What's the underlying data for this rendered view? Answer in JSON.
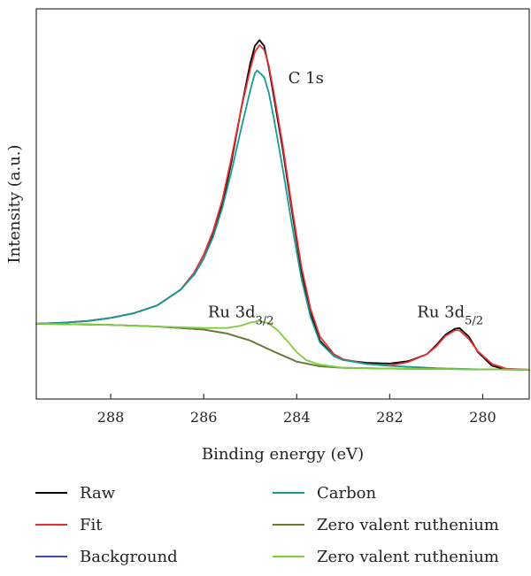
{
  "chart_data": {
    "type": "line",
    "xlabel": "Binding energy (eV)",
    "ylabel": "Intensity (a.u.)",
    "xlim": [
      289.6,
      279.0
    ],
    "ylim": [
      0,
      100
    ],
    "x_reversed": true,
    "x_ticks": [
      288,
      286,
      284,
      282,
      280
    ],
    "grid": false,
    "legend_position": "bottom",
    "annotations": [
      {
        "text": "C 1s",
        "x": 283.8,
        "y": 81
      },
      {
        "base": "Ru 3d",
        "sub": "3/2",
        "x": 285.2,
        "y": 21
      },
      {
        "base": "Ru 3d",
        "sub": "5/2",
        "x": 280.7,
        "y": 21
      }
    ],
    "series": [
      {
        "name": "Raw",
        "color": "#000000",
        "width": 1.8,
        "points": [
          [
            289.6,
            19.3
          ],
          [
            289.0,
            19.6
          ],
          [
            288.5,
            20.0
          ],
          [
            288.0,
            20.8
          ],
          [
            287.5,
            22.0
          ],
          [
            287.0,
            24.0
          ],
          [
            286.5,
            28.0
          ],
          [
            286.2,
            32.0
          ],
          [
            286.0,
            36.0
          ],
          [
            285.8,
            42.0
          ],
          [
            285.6,
            50.0
          ],
          [
            285.4,
            61.0
          ],
          [
            285.2,
            74.0
          ],
          [
            285.0,
            86.0
          ],
          [
            284.9,
            90.5
          ],
          [
            284.8,
            92.0
          ],
          [
            284.7,
            90.5
          ],
          [
            284.6,
            85.0
          ],
          [
            284.5,
            78.0
          ],
          [
            284.3,
            64.0
          ],
          [
            284.1,
            48.0
          ],
          [
            283.9,
            33.0
          ],
          [
            283.7,
            22.0
          ],
          [
            283.5,
            15.0
          ],
          [
            283.2,
            11.0
          ],
          [
            283.0,
            10.0
          ],
          [
            282.5,
            9.3
          ],
          [
            282.0,
            9.1
          ],
          [
            281.6,
            9.7
          ],
          [
            281.2,
            11.5
          ],
          [
            281.0,
            13.8
          ],
          [
            280.8,
            16.5
          ],
          [
            280.6,
            18.0
          ],
          [
            280.5,
            18.2
          ],
          [
            280.3,
            16.0
          ],
          [
            280.1,
            12.0
          ],
          [
            279.8,
            8.5
          ],
          [
            279.5,
            7.6
          ],
          [
            279.0,
            7.5
          ]
        ]
      },
      {
        "name": "Fit",
        "color": "#e8302e",
        "width": 1.8,
        "points": [
          [
            289.6,
            19.3
          ],
          [
            289.0,
            19.6
          ],
          [
            288.5,
            20.0
          ],
          [
            288.0,
            20.8
          ],
          [
            287.5,
            22.0
          ],
          [
            287.0,
            24.0
          ],
          [
            286.5,
            28.0
          ],
          [
            286.2,
            32.5
          ],
          [
            286.0,
            37.0
          ],
          [
            285.8,
            43.0
          ],
          [
            285.6,
            51.0
          ],
          [
            285.4,
            62.0
          ],
          [
            285.2,
            74.0
          ],
          [
            285.0,
            84.5
          ],
          [
            284.9,
            89.0
          ],
          [
            284.8,
            90.7
          ],
          [
            284.7,
            89.5
          ],
          [
            284.6,
            85.5
          ],
          [
            284.5,
            79.0
          ],
          [
            284.3,
            65.0
          ],
          [
            284.1,
            49.0
          ],
          [
            283.9,
            34.0
          ],
          [
            283.7,
            23.0
          ],
          [
            283.5,
            16.0
          ],
          [
            283.2,
            11.5
          ],
          [
            283.0,
            10.2
          ],
          [
            282.5,
            9.0
          ],
          [
            282.0,
            8.6
          ],
          [
            281.6,
            9.5
          ],
          [
            281.2,
            11.5
          ],
          [
            281.0,
            13.5
          ],
          [
            280.8,
            16.2
          ],
          [
            280.6,
            17.6
          ],
          [
            280.5,
            17.6
          ],
          [
            280.3,
            15.4
          ],
          [
            280.1,
            12.2
          ],
          [
            279.8,
            9.0
          ],
          [
            279.5,
            7.8
          ],
          [
            279.0,
            7.5
          ]
        ]
      },
      {
        "name": "Background",
        "color": "#3c4fa8",
        "width": 1.8,
        "points": [
          [
            289.6,
            19.3
          ],
          [
            289.0,
            19.2
          ],
          [
            288.0,
            19.0
          ],
          [
            287.0,
            18.6
          ],
          [
            286.0,
            17.8
          ],
          [
            285.5,
            16.8
          ],
          [
            285.0,
            15.0
          ],
          [
            284.5,
            12.2
          ],
          [
            284.0,
            9.6
          ],
          [
            283.5,
            8.4
          ],
          [
            283.0,
            8.0
          ],
          [
            282.0,
            7.8
          ],
          [
            281.0,
            7.7
          ],
          [
            280.0,
            7.6
          ],
          [
            279.0,
            7.5
          ]
        ]
      },
      {
        "name": "Carbon",
        "color": "#179a93",
        "width": 1.8,
        "points": [
          [
            289.6,
            19.3
          ],
          [
            289.0,
            19.6
          ],
          [
            288.5,
            20.0
          ],
          [
            288.0,
            20.8
          ],
          [
            287.5,
            22.0
          ],
          [
            287.0,
            24.0
          ],
          [
            286.5,
            28.0
          ],
          [
            286.2,
            32.0
          ],
          [
            286.0,
            36.0
          ],
          [
            285.8,
            41.5
          ],
          [
            285.6,
            49.0
          ],
          [
            285.4,
            58.5
          ],
          [
            285.2,
            69.0
          ],
          [
            285.0,
            79.0
          ],
          [
            284.9,
            83.5
          ],
          [
            284.85,
            84.2
          ],
          [
            284.7,
            82.5
          ],
          [
            284.6,
            78.5
          ],
          [
            284.5,
            72.5
          ],
          [
            284.3,
            59.0
          ],
          [
            284.1,
            44.5
          ],
          [
            283.9,
            31.0
          ],
          [
            283.7,
            21.0
          ],
          [
            283.5,
            14.5
          ],
          [
            283.2,
            11.0
          ],
          [
            283.0,
            10.0
          ],
          [
            282.5,
            9.0
          ],
          [
            282.0,
            8.5
          ],
          [
            281.5,
            8.2
          ],
          [
            281.0,
            7.9
          ],
          [
            280.0,
            7.6
          ],
          [
            279.0,
            7.5
          ]
        ]
      },
      {
        "name": "Zero valent ruthenium",
        "color": "#6b7a2e",
        "width": 1.8,
        "points": [
          [
            289.6,
            19.3
          ],
          [
            289.0,
            19.2
          ],
          [
            288.0,
            19.0
          ],
          [
            287.0,
            18.6
          ],
          [
            286.0,
            17.8
          ],
          [
            285.5,
            16.8
          ],
          [
            285.0,
            15.0
          ],
          [
            284.5,
            12.2
          ],
          [
            284.0,
            9.6
          ],
          [
            283.5,
            8.4
          ],
          [
            283.0,
            8.0
          ],
          [
            282.0,
            7.8
          ],
          [
            281.0,
            7.7
          ],
          [
            280.0,
            7.6
          ],
          [
            279.0,
            7.5
          ]
        ]
      },
      {
        "name": "Zero valent ruthenium",
        "color": "#7ccf3a",
        "width": 1.8,
        "points": [
          [
            289.6,
            19.3
          ],
          [
            289.0,
            19.2
          ],
          [
            288.0,
            19.0
          ],
          [
            287.0,
            18.6
          ],
          [
            286.0,
            18.2
          ],
          [
            285.5,
            18.2
          ],
          [
            285.2,
            18.8
          ],
          [
            285.0,
            19.6
          ],
          [
            284.8,
            20.0
          ],
          [
            284.6,
            19.4
          ],
          [
            284.4,
            17.5
          ],
          [
            284.2,
            14.8
          ],
          [
            284.0,
            12.0
          ],
          [
            283.8,
            10.0
          ],
          [
            283.5,
            8.8
          ],
          [
            283.0,
            8.0
          ],
          [
            282.0,
            7.8
          ],
          [
            281.0,
            7.7
          ],
          [
            280.0,
            7.6
          ],
          [
            279.0,
            7.5
          ]
        ]
      }
    ]
  }
}
